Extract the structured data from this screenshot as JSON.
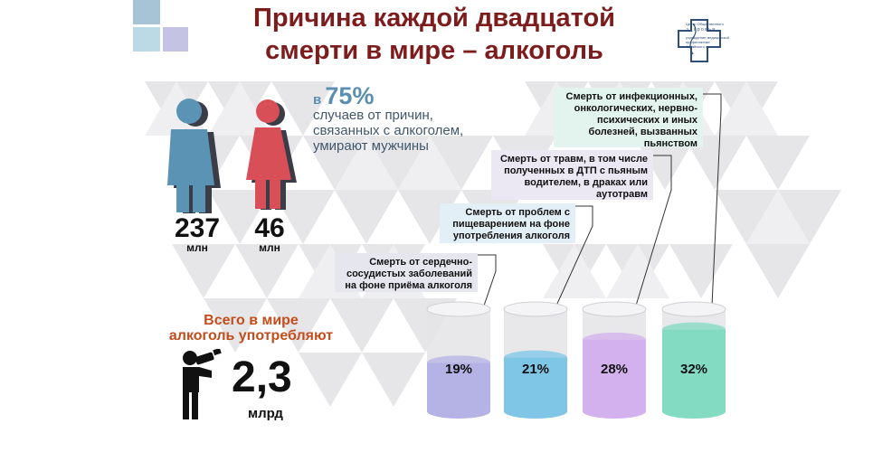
{
  "title": {
    "line1": "Причина каждой двадцатой",
    "line2": "смерти в мире – алкоголь"
  },
  "logo": {
    "text_lines": [
      "Центр Общественного",
      "З д о р о в ь я",
      "учреждение медицинской",
      "профилактики",
      "Алтайского края"
    ],
    "colors": [
      "#2e4f7a"
    ]
  },
  "gender": {
    "percent_prefix": "в",
    "percent": "75%",
    "text_lines": [
      "случаев от причин,",
      "связанных с алкоголем,",
      "умирают мужчины"
    ],
    "men": {
      "value": "237",
      "unit": "млн",
      "color": "#5b93b5"
    },
    "women": {
      "value": "46",
      "unit": "млн",
      "color": "#d94f57"
    }
  },
  "total": {
    "label_lines": [
      "Всего в мире",
      "алкоголь употребляют"
    ],
    "value": "2,3",
    "unit": "млрд"
  },
  "causes": [
    {
      "text_lines": [
        "Смерть от сердечно-",
        "сосудистых заболеваний",
        "на фоне приёма алкоголя"
      ],
      "percent": "19%",
      "color": "#b5b3e6"
    },
    {
      "text_lines": [
        "Смерть от проблем с",
        "пищеварением на фоне",
        "употребления алкоголя"
      ],
      "percent": "21%",
      "color": "#7ec5e6"
    },
    {
      "text_lines": [
        "Смерть от травм, в том числе",
        "полученных в ДТП с пьяным",
        "водителем, в драках или",
        "аутотравм"
      ],
      "percent": "28%",
      "color": "#d3b0ee"
    },
    {
      "text_lines": [
        "Смерть от инфекционных,",
        "онкологических, нервно-",
        "психических и иных",
        "болезней, вызванных",
        "пьянством"
      ],
      "percent": "32%",
      "color": "#83dbc2"
    }
  ],
  "colors": {
    "title": "#7d1c1c",
    "accent_orange": "#c34d1c",
    "accent_blue": "#5b8fb1"
  }
}
